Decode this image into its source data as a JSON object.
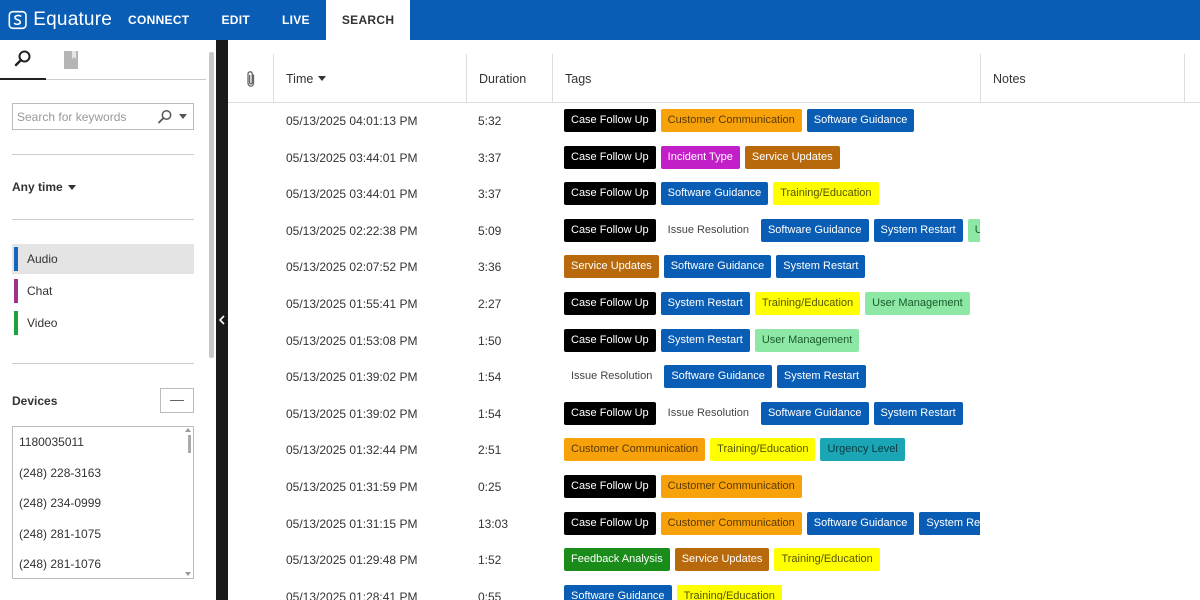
{
  "app": {
    "brand": "Equature",
    "nav_tabs": [
      "CONNECT",
      "EDIT",
      "LIVE",
      "SEARCH"
    ],
    "active_tab": "SEARCH"
  },
  "sidebar": {
    "search_placeholder": "Search for keywords",
    "time_filter": "Any time",
    "channels": [
      {
        "label": "Audio",
        "color": "#1565c0",
        "selected": true
      },
      {
        "label": "Chat",
        "color": "#a0338f",
        "selected": false
      },
      {
        "label": "Video",
        "color": "#1aa33a",
        "selected": false
      }
    ],
    "devices_label": "Devices",
    "devices": [
      "1180035011",
      "(248) 228-3163",
      "(248) 234-0999",
      "(248) 281-1075",
      "(248) 281-1076"
    ]
  },
  "table": {
    "columns": {
      "time": "Time",
      "duration": "Duration",
      "tags": "Tags",
      "notes": "Notes"
    },
    "tag_styles": {
      "Case Follow Up": {
        "bg": "#000000",
        "fg": "#ffffff"
      },
      "Customer Communication": {
        "bg": "#f7a20b",
        "fg": "#5a3a00"
      },
      "Software Guidance": {
        "bg": "#0a5db5",
        "fg": "#ffffff"
      },
      "Incident Type": {
        "bg": "#c21fc9",
        "fg": "#ffffff"
      },
      "Service Updates": {
        "bg": "#b8690c",
        "fg": "#ffffff"
      },
      "Training/Education": {
        "bg": "#ffff00",
        "fg": "#555500"
      },
      "Issue Resolution": {
        "bg": "#ffffff",
        "fg": "#444444"
      },
      "System Restart": {
        "bg": "#0a5db5",
        "fg": "#ffffff"
      },
      "User Management": {
        "bg": "#8de8a6",
        "fg": "#1a5a2a"
      },
      "Urgency Level": {
        "bg": "#1aa6b5",
        "fg": "#0b3a40"
      },
      "Feedback Analysis": {
        "bg": "#1a8c1a",
        "fg": "#ffffff"
      }
    },
    "rows": [
      {
        "time": "05/13/2025 04:01:13 PM",
        "duration": "5:32",
        "tags": [
          "Case Follow Up",
          "Customer Communication",
          "Software Guidance"
        ]
      },
      {
        "time": "05/13/2025 03:44:01 PM",
        "duration": "3:37",
        "tags": [
          "Case Follow Up",
          "Incident Type",
          "Service Updates"
        ]
      },
      {
        "time": "05/13/2025 03:44:01 PM",
        "duration": "3:37",
        "tags": [
          "Case Follow Up",
          "Software Guidance",
          "Training/Education"
        ]
      },
      {
        "time": "05/13/2025 02:22:38 PM",
        "duration": "5:09",
        "tags": [
          "Case Follow Up",
          "Issue Resolution",
          "Software Guidance",
          "System Restart",
          "User Management"
        ]
      },
      {
        "time": "05/13/2025 02:07:52 PM",
        "duration": "3:36",
        "tags": [
          "Service Updates",
          "Software Guidance",
          "System Restart"
        ]
      },
      {
        "time": "05/13/2025 01:55:41 PM",
        "duration": "2:27",
        "tags": [
          "Case Follow Up",
          "System Restart",
          "Training/Education",
          "User Management"
        ]
      },
      {
        "time": "05/13/2025 01:53:08 PM",
        "duration": "1:50",
        "tags": [
          "Case Follow Up",
          "System Restart",
          "User Management"
        ]
      },
      {
        "time": "05/13/2025 01:39:02 PM",
        "duration": "1:54",
        "tags": [
          "Issue Resolution",
          "Software Guidance",
          "System Restart"
        ]
      },
      {
        "time": "05/13/2025 01:39:02 PM",
        "duration": "1:54",
        "tags": [
          "Case Follow Up",
          "Issue Resolution",
          "Software Guidance",
          "System Restart"
        ]
      },
      {
        "time": "05/13/2025 01:32:44 PM",
        "duration": "2:51",
        "tags": [
          "Customer Communication",
          "Training/Education",
          "Urgency Level"
        ]
      },
      {
        "time": "05/13/2025 01:31:59 PM",
        "duration": "0:25",
        "tags": [
          "Case Follow Up",
          "Customer Communication"
        ]
      },
      {
        "time": "05/13/2025 01:31:15 PM",
        "duration": "13:03",
        "tags": [
          "Case Follow Up",
          "Customer Communication",
          "Software Guidance",
          "System Restart"
        ]
      },
      {
        "time": "05/13/2025 01:29:48 PM",
        "duration": "1:52",
        "tags": [
          "Feedback Analysis",
          "Service Updates",
          "Training/Education"
        ]
      },
      {
        "time": "05/13/2025 01:28:41 PM",
        "duration": "0:55",
        "tags": [
          "Software Guidance",
          "Training/Education"
        ]
      }
    ]
  }
}
